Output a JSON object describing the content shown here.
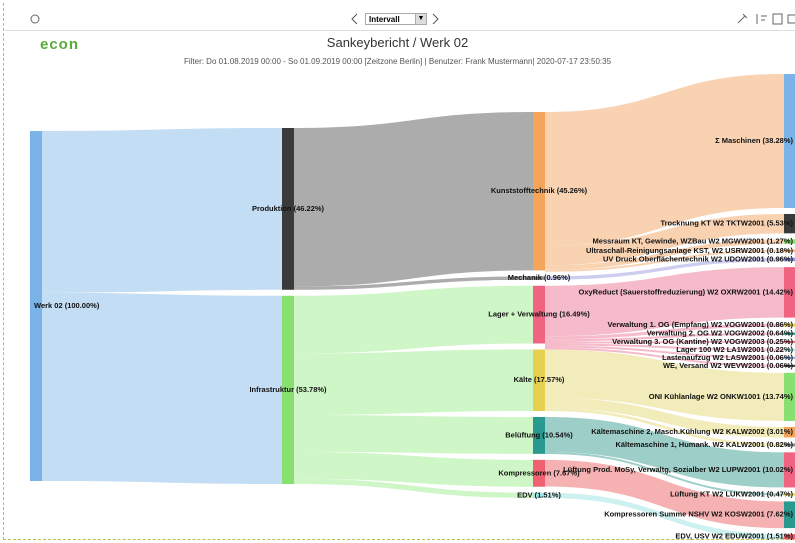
{
  "toolbar": {
    "select": "Intervall"
  },
  "logo": "econ",
  "title": "Sankeybericht / Werk 02",
  "filter": "Filter: Do 01.08.2019 00:00 - So 01.09.2019 00:00 [Zeitzone Berlin] | Benutzer: Frank Mustermann| 2020-07-17 23:50:35",
  "sankey": {
    "scale": "percent",
    "nodes": [
      {
        "label": "Werk 02 (100.00%)",
        "value": 100,
        "col": 0,
        "parent": null,
        "color": "#7ab3e8",
        "link_color": "#bcd9f3"
      },
      {
        "label": "Produktion (46.22%)",
        "value": 46.22,
        "col": 1,
        "parent": 0,
        "color": "#3a3a3a",
        "link_color": "#a3a3a3"
      },
      {
        "label": "Infrastruktur (53.78%)",
        "value": 53.78,
        "col": 1,
        "parent": 0,
        "color": "#88e070",
        "link_color": "#c9f5c0"
      },
      {
        "label": "Kunststofftechnik (45.26%)",
        "value": 45.26,
        "col": 2,
        "parent": 1,
        "color": "#f5a55a",
        "link_color": "#f8cdaa"
      },
      {
        "label": "Mechanik (0.96%)",
        "value": 0.96,
        "col": 2,
        "parent": 1,
        "color": "#8c8c8c",
        "link_color": "#c8c8ee"
      },
      {
        "label": "Lager + Verwaltung (16.49%)",
        "value": 16.49,
        "col": 2,
        "parent": 2,
        "color": "#f06482",
        "link_color": "#f5b4c4"
      },
      {
        "label": "Kälte (17.57%)",
        "value": 17.57,
        "col": 2,
        "parent": 2,
        "color": "#e6d050",
        "link_color": "#f1e9b2"
      },
      {
        "label": "Belüftung (10.54%)",
        "value": 10.54,
        "col": 2,
        "parent": 2,
        "color": "#2a9a90",
        "link_color": "#93c9c2"
      },
      {
        "label": "Kompressoren (7.67%)",
        "value": 7.67,
        "col": 2,
        "parent": 2,
        "color": "#f06070",
        "link_color": "#f5aaaa"
      },
      {
        "label": "EDV (1.51%)",
        "value": 1.51,
        "col": 2,
        "parent": 2,
        "color": "#a0e8e8",
        "link_color": "#c8f0f0"
      },
      {
        "label": "Σ Maschinen (38.28%)",
        "value": 38.28,
        "col": 3,
        "parent": 3,
        "color": "#7ab3e8"
      },
      {
        "label": "Trocknung KT W2 TKTW2001 (5.53%)",
        "value": 5.53,
        "col": 3,
        "parent": 3,
        "color": "#3a3a3a"
      },
      {
        "label": "Messraum KT, Gewinde, WZBau W2 MGWW2001 (1.27%)",
        "value": 1.27,
        "col": 3,
        "parent": 3,
        "color": "#88e070"
      },
      {
        "label": "Ultraschall-Reinigungsanlage KST, W2 USRW2001 (0.18%)",
        "value": 0.18,
        "col": 3,
        "parent": 3,
        "color": "#f5a55a"
      },
      {
        "label": "UV Druck Oberflächentechnik W2 UDOW2001 (0.96%)",
        "value": 0.96,
        "col": 3,
        "parent": 4,
        "color": "#9090e0"
      },
      {
        "label": "OxyReduct (Sauerstoffreduzierung) W2 OXRW2001 (14.42%)",
        "value": 14.42,
        "col": 3,
        "parent": 5,
        "color": "#f06482"
      },
      {
        "label": "Verwaltung 1. OG (Empfang) W2 VOGW2001 (0.86%)",
        "value": 0.86,
        "col": 3,
        "parent": 5,
        "color": "#e6d050"
      },
      {
        "label": "Verwaltung 2. OG W2 VOGW2002 (0.64%)",
        "value": 0.64,
        "col": 3,
        "parent": 5,
        "color": "#2a9a90"
      },
      {
        "label": "Verwaltung 3. OG (Kantine) W2 VOGW2003 (0.25%)",
        "value": 0.25,
        "col": 3,
        "parent": 5,
        "color": "#f06070"
      },
      {
        "label": "Lager 100 W2 LA1W2001 (0.22%)",
        "value": 0.22,
        "col": 3,
        "parent": 5,
        "color": "#a0e8e8"
      },
      {
        "label": "Lastenaufzug W2 LASW2001 (0.06%)",
        "value": 0.06,
        "col": 3,
        "parent": 5,
        "color": "#7ab3e8"
      },
      {
        "label": "WE, Versand W2 WEVW2001 (0.06%)",
        "value": 0.06,
        "col": 3,
        "parent": 5,
        "color": "#3a3a3a"
      },
      {
        "label": "ONI Kühlanlage W2 ONKW1001 (13.74%)",
        "value": 13.74,
        "col": 3,
        "parent": 6,
        "color": "#88e070"
      },
      {
        "label": "Kältemaschine 2, Masch.Kühlung W2 KALW2002 (3.01%)",
        "value": 3.01,
        "col": 3,
        "parent": 6,
        "color": "#f5a55a"
      },
      {
        "label": "Kältemaschine 1, Humank. W2 KALW2001 (0.82%)",
        "value": 0.82,
        "col": 3,
        "parent": 6,
        "color": "#8c8c8c"
      },
      {
        "label": "Lüftung Prod. MoSy, Verwaltg, Sozialber  W2 LUPW2001 (10.02%)",
        "value": 10.02,
        "col": 3,
        "parent": 7,
        "color": "#f06482"
      },
      {
        "label": "Lüftung KT W2 LUKW2001 (0.47%)",
        "value": 0.47,
        "col": 3,
        "parent": 7,
        "color": "#e6d050"
      },
      {
        "label": "Kompressoren Summe NSHV W2 KOSW2001 (7.62%)",
        "value": 7.62,
        "col": 3,
        "parent": 8,
        "color": "#2a9a90"
      },
      {
        "label": "EDV, USV W2 EDUW2001 (1.51%)",
        "value": 1.51,
        "col": 3,
        "parent": 9,
        "color": "#f06070"
      }
    ]
  }
}
